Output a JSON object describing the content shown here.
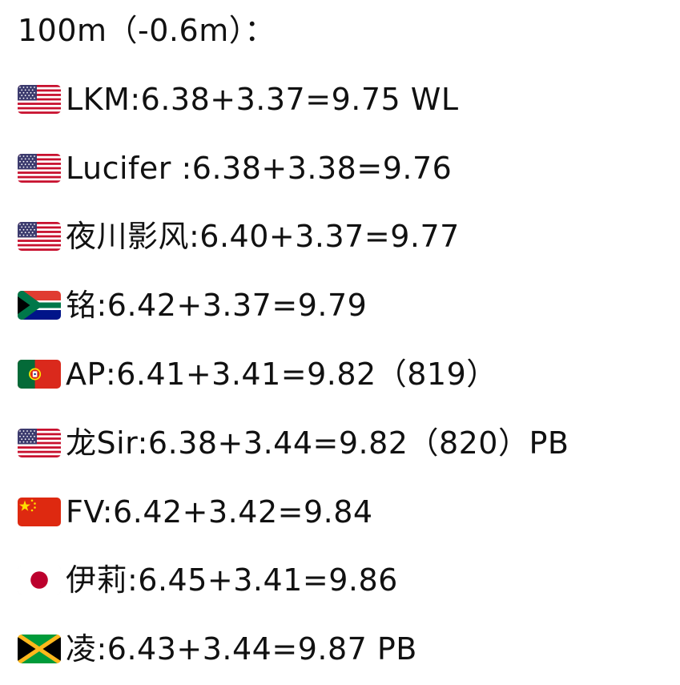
{
  "header": "100m（-0.6m）：",
  "entries": [
    {
      "flag": "us-flag-icon",
      "text": "LKM:6.38+3.37=9.75 WL"
    },
    {
      "flag": "us-flag-icon",
      "text": "Lucifer :6.38+3.38=9.76"
    },
    {
      "flag": "us-flag-icon",
      "text": "夜川影风:6.40+3.37=9.77"
    },
    {
      "flag": "za-flag-icon",
      "text": "铭:6.42+3.37=9.79"
    },
    {
      "flag": "pt-flag-icon",
      "text": "AP:6.41+3.41=9.82（819）"
    },
    {
      "flag": "us-flag-icon",
      "text": "龙Sir:6.38+3.44=9.82（820）PB"
    },
    {
      "flag": "cn-flag-icon",
      "text": "FV:6.42+3.42=9.84"
    },
    {
      "flag": "jp-flag-icon",
      "text": "伊莉:6.45+3.41=9.86"
    },
    {
      "flag": "jm-flag-icon",
      "text": "凌:6.43+3.44=9.87 PB"
    }
  ]
}
